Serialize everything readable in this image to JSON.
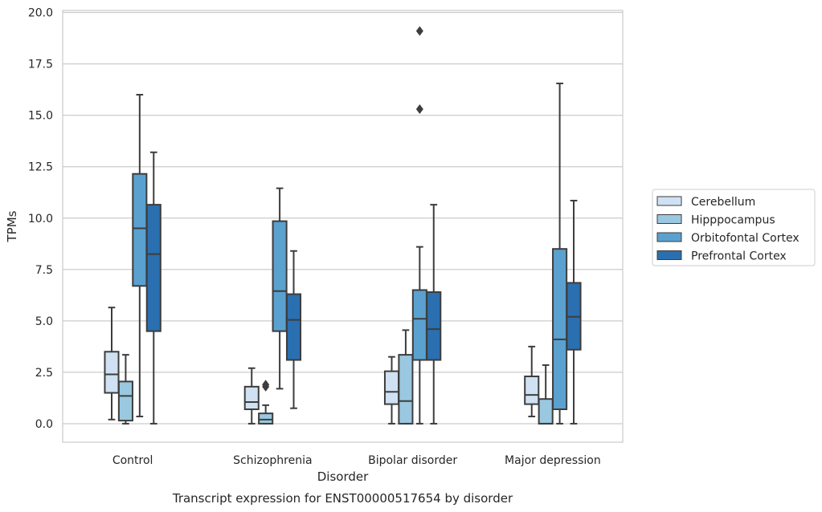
{
  "chart_data": {
    "type": "box",
    "title": "",
    "caption": "Transcript expression for ENST00000517654 by disorder",
    "xlabel": "Disorder",
    "ylabel": "TPMs",
    "ylim": [
      -0.9,
      20.1
    ],
    "yticks": [
      "0.0",
      "2.5",
      "5.0",
      "7.5",
      "10.0",
      "12.5",
      "15.0",
      "17.5",
      "20.0"
    ],
    "grid": "horizontal",
    "legend_placement": "right",
    "categories": [
      "Control",
      "Schizophrenia",
      "Bipolar disorder",
      "Major depression"
    ],
    "series": [
      {
        "name": "Cerebellum",
        "color": "#cfe1f2",
        "boxes": [
          {
            "whislo": 0.2,
            "q1": 1.5,
            "med": 2.4,
            "q3": 3.5,
            "whishi": 5.65,
            "fliers": []
          },
          {
            "whislo": 0.0,
            "q1": 0.7,
            "med": 1.05,
            "q3": 1.8,
            "whishi": 2.7,
            "fliers": []
          },
          {
            "whislo": 0.0,
            "q1": 0.95,
            "med": 1.55,
            "q3": 2.55,
            "whishi": 3.25,
            "fliers": []
          },
          {
            "whislo": 0.35,
            "q1": 0.95,
            "med": 1.4,
            "q3": 2.3,
            "whishi": 3.75,
            "fliers": []
          }
        ]
      },
      {
        "name": "Hipppocampus",
        "color": "#9ac8e0",
        "boxes": [
          {
            "whislo": 0.0,
            "q1": 0.15,
            "med": 1.35,
            "q3": 2.05,
            "whishi": 3.35,
            "fliers": []
          },
          {
            "whislo": 0.0,
            "q1": 0.0,
            "med": 0.2,
            "q3": 0.5,
            "whishi": 0.9,
            "fliers": [
              1.8,
              1.9
            ]
          },
          {
            "whislo": 0.0,
            "q1": 0.0,
            "med": 1.1,
            "q3": 3.35,
            "whishi": 4.55,
            "fliers": []
          },
          {
            "whislo": 0.0,
            "q1": 0.0,
            "med": 0.0,
            "q3": 1.2,
            "whishi": 2.85,
            "fliers": []
          }
        ]
      },
      {
        "name": "Orbitofontal Cortex",
        "color": "#5aa1cf",
        "boxes": [
          {
            "whislo": 0.35,
            "q1": 6.7,
            "med": 9.5,
            "q3": 12.15,
            "whishi": 16.0,
            "fliers": []
          },
          {
            "whislo": 1.7,
            "q1": 4.5,
            "med": 6.45,
            "q3": 9.85,
            "whishi": 11.45,
            "fliers": []
          },
          {
            "whislo": 0.0,
            "q1": 3.1,
            "med": 5.1,
            "q3": 6.5,
            "whishi": 8.6,
            "fliers": [
              15.3,
              19.1
            ]
          },
          {
            "whislo": 0.0,
            "q1": 0.7,
            "med": 4.1,
            "q3": 8.5,
            "whishi": 16.55,
            "fliers": []
          }
        ]
      },
      {
        "name": "Prefrontal Cortex",
        "color": "#2a6fb0",
        "boxes": [
          {
            "whislo": 0.0,
            "q1": 4.5,
            "med": 8.25,
            "q3": 10.65,
            "whishi": 13.2,
            "fliers": []
          },
          {
            "whislo": 0.75,
            "q1": 3.1,
            "med": 5.05,
            "q3": 6.3,
            "whishi": 8.4,
            "fliers": []
          },
          {
            "whislo": 0.0,
            "q1": 3.1,
            "med": 4.6,
            "q3": 6.4,
            "whishi": 10.65,
            "fliers": []
          },
          {
            "whislo": 0.0,
            "q1": 3.6,
            "med": 5.2,
            "q3": 6.85,
            "whishi": 10.85,
            "fliers": []
          }
        ]
      }
    ]
  }
}
